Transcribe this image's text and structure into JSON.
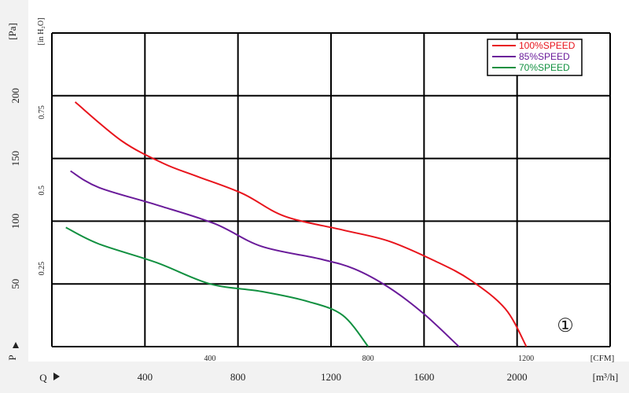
{
  "chart_data": {
    "type": "line",
    "title": "",
    "xlabel": "Q",
    "ylabel": "P",
    "x_unit": "[m³/h]",
    "x_unit_secondary": "[CFM]",
    "y_unit": "[Pa]",
    "y_unit_secondary": "[in H₂O]",
    "x_ticks": [
      "400",
      "800",
      "1200",
      "1600",
      "2000"
    ],
    "x_ticks_secondary": [
      "400",
      "800",
      "1200"
    ],
    "y_ticks": [
      "50",
      "100",
      "150",
      "200"
    ],
    "y_ticks_secondary": [
      "0.25",
      "0.5",
      "0.75"
    ],
    "xlim": [
      0,
      2400
    ],
    "ylim": [
      0,
      250
    ],
    "cfm_per_m3h": 0.5886,
    "inh2o_per_pa": 0.004015,
    "grid": true,
    "legend_position": "top-right",
    "annotation": "①",
    "series": [
      {
        "name": "100%SPEED",
        "color": "#e8141c",
        "x": [
          100,
          300,
          480,
          620,
          820,
          1000,
          1250,
          1450,
          1650,
          1800,
          1950,
          2040
        ],
        "y": [
          195,
          164,
          146,
          136,
          122,
          104,
          93,
          84,
          68,
          53,
          30,
          0
        ]
      },
      {
        "name": "85%SPEED",
        "color": "#6a1b9a",
        "x": [
          80,
          200,
          450,
          700,
          900,
          1150,
          1300,
          1450,
          1600,
          1750
        ],
        "y": [
          140,
          127,
          113,
          98,
          80,
          70,
          62,
          47,
          26,
          0
        ]
      },
      {
        "name": "70%SPEED",
        "color": "#119040",
        "x": [
          60,
          200,
          450,
          680,
          900,
          1100,
          1250,
          1360
        ],
        "y": [
          95,
          82,
          67,
          50,
          44,
          36,
          25,
          0
        ]
      }
    ]
  }
}
